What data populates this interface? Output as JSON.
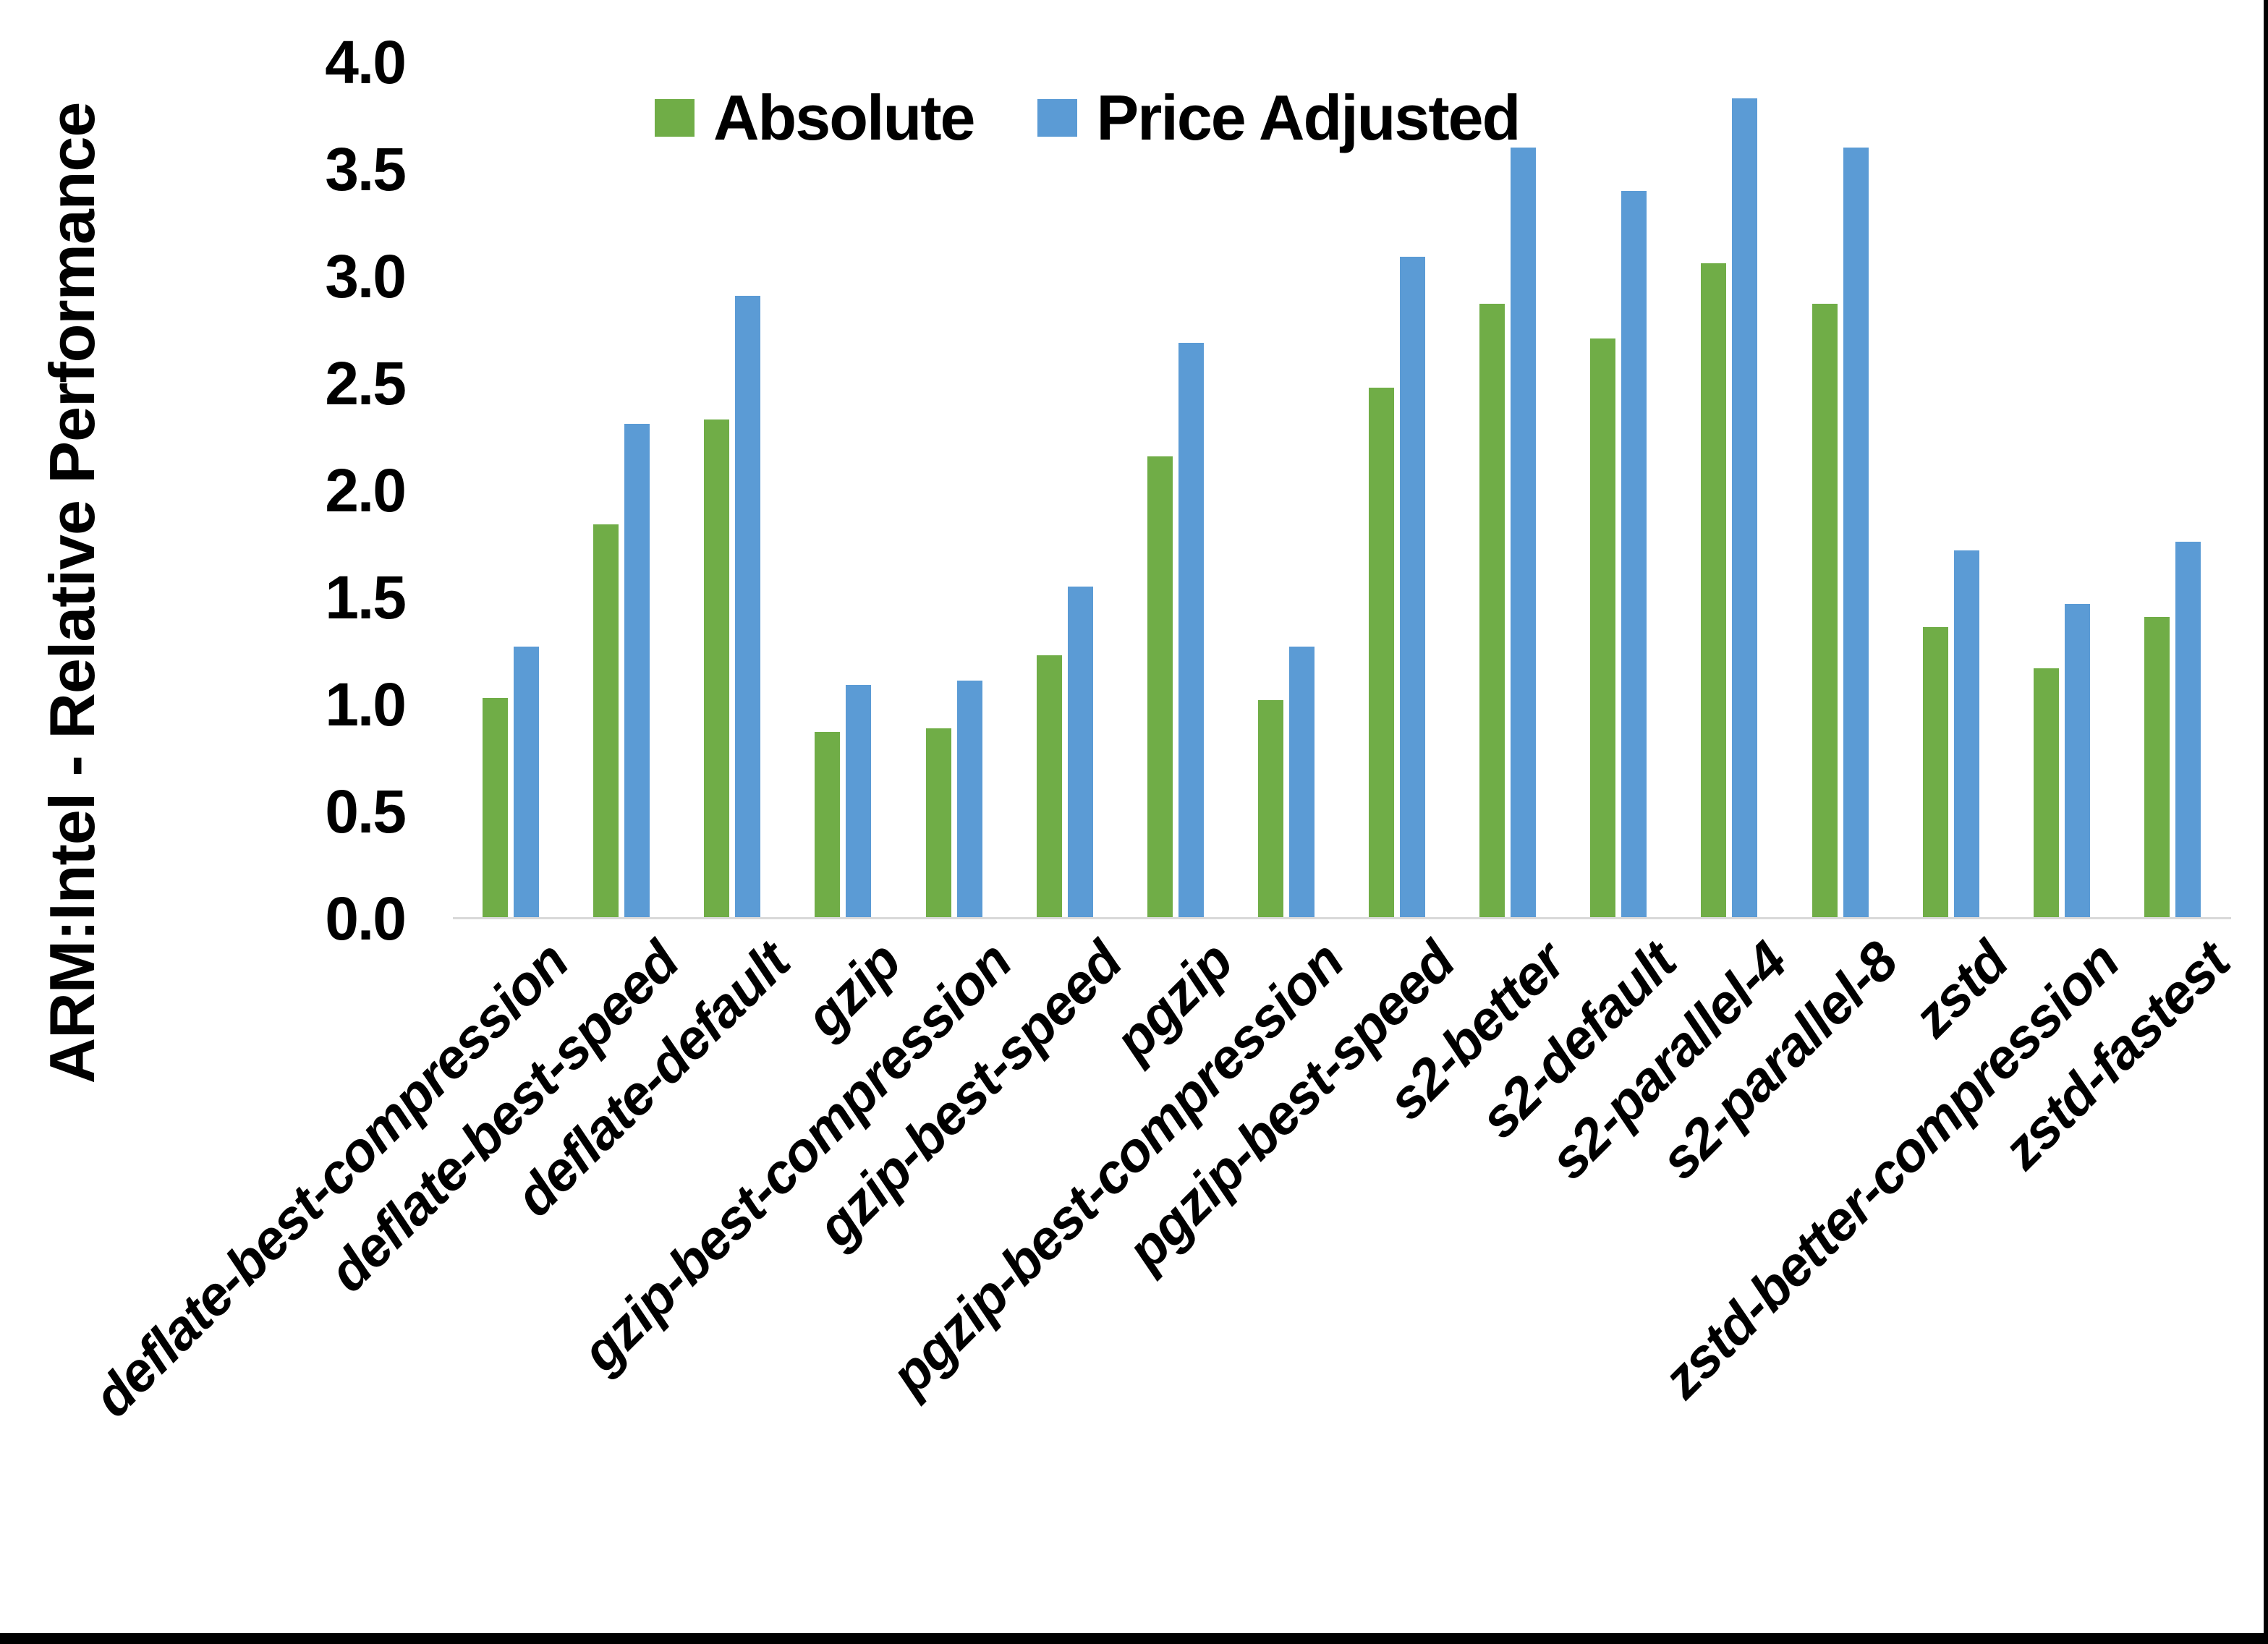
{
  "chart_data": {
    "type": "bar",
    "title": "",
    "xlabel": "",
    "ylabel": "ARM:Intel - Relative Performance",
    "ylim": [
      0.0,
      4.0
    ],
    "ytick_step": 0.5,
    "ytick_labels": [
      "0.0",
      "0.5",
      "1.0",
      "1.5",
      "2.0",
      "2.5",
      "3.0",
      "3.5",
      "4.0"
    ],
    "grid": false,
    "legend_position": "top-center",
    "categories": [
      "deflate-best-compression",
      "deflate-best-speed",
      "deflate-default",
      "gzip",
      "gzip-best-compression",
      "gzip-best-speed",
      "pgzip",
      "pgzip-best-compression",
      "pgzip-best-speed",
      "s2-better",
      "s2-default",
      "s2-parallel-4",
      "s2-parallel-8",
      "zstd",
      "zstd-better-compression",
      "zstd-fastest"
    ],
    "series": [
      {
        "name": "Absolute",
        "color": "#70AD47",
        "values": [
          1.03,
          1.84,
          2.33,
          0.87,
          0.89,
          1.23,
          2.16,
          1.02,
          2.48,
          2.87,
          2.71,
          3.06,
          2.87,
          1.36,
          1.17,
          1.41
        ]
      },
      {
        "name": "Price Adjusted",
        "color": "#5B9BD5",
        "values": [
          1.27,
          2.31,
          2.91,
          1.09,
          1.11,
          1.55,
          2.69,
          1.27,
          3.09,
          3.6,
          3.4,
          3.83,
          3.6,
          1.72,
          1.47,
          1.76
        ]
      }
    ]
  },
  "colors": {
    "axis_line": "#D9D9D9",
    "text": "#000000",
    "background": "#FFFFFF",
    "frame": "#000000"
  }
}
